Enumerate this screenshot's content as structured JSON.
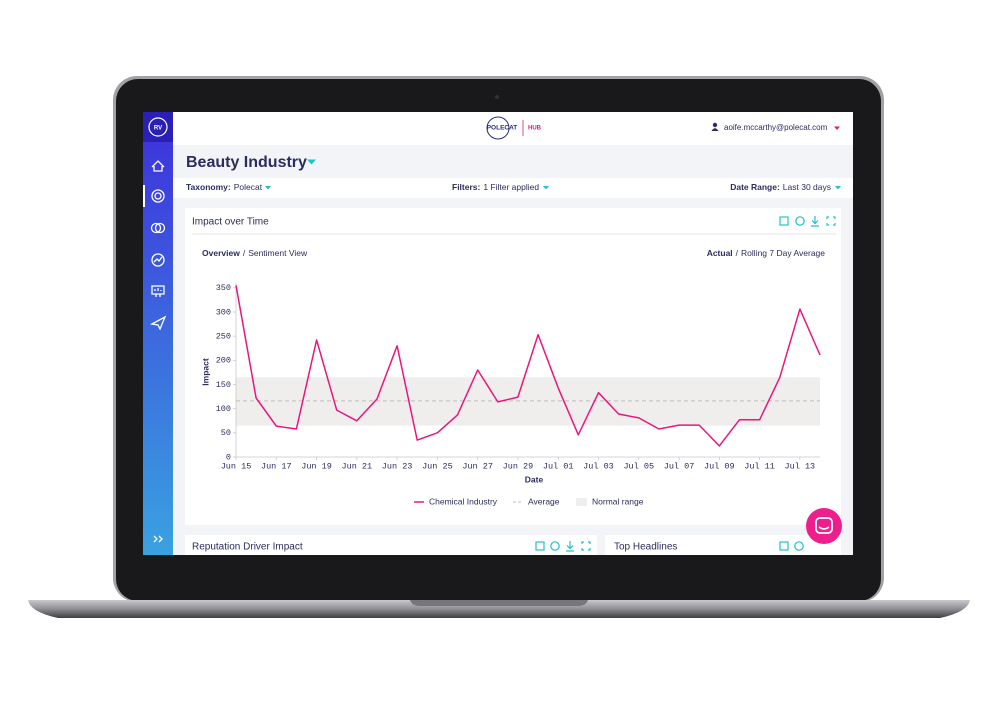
{
  "header": {
    "logo_badge": "RV",
    "brand": "POLECAT",
    "product": "HUB",
    "user": "aoife.mccarthy@polecat.com"
  },
  "page_title": "Beauty Industry",
  "filters": {
    "taxonomy_label": "Taxonomy:",
    "taxonomy": "Polecat",
    "filters_label": "Filters:",
    "filters": "1 Filter applied",
    "date_range_label": "Date Range:",
    "date_range": "Last 30 days"
  },
  "panels": {
    "impact": "Impact over Time",
    "reputation": "Reputation Driver Impact",
    "headlines": "Top Headlines"
  },
  "view_toggle": {
    "active": "Overview",
    "separator": "/",
    "other": "Sentiment View"
  },
  "mode_toggle": {
    "active": "Actual",
    "separator": "/",
    "other": "Rolling 7 Day Average"
  },
  "chart_data": {
    "type": "line",
    "x_label": "Date",
    "y_label": "Impact",
    "categories": [
      "Jun 15",
      null,
      "Jun 17",
      null,
      "Jun 19",
      null,
      "Jun 21",
      null,
      "Jun 23",
      null,
      "Jun 25",
      null,
      "Jun 27",
      null,
      "Jun 29",
      null,
      "Jul 01",
      null,
      "Jul 03",
      null,
      "Jul 05",
      null,
      "Jul 07",
      null,
      "Jul 09",
      null,
      "Jul 11",
      null,
      "Jul 13",
      null
    ],
    "series": [
      {
        "name": "Chemical Industry",
        "color": "#e8177d",
        "values": [
          355,
          122,
          64,
          58,
          242,
          97,
          75,
          120,
          230,
          35,
          50,
          87,
          180,
          114,
          124,
          253,
          143,
          46,
          133,
          89,
          81,
          58,
          66,
          66,
          23,
          77,
          77,
          164,
          306,
          211
        ]
      }
    ],
    "average": {
      "name": "Average",
      "value": 116,
      "color": "#bdbdbd"
    },
    "normal_range": {
      "name": "Normal range",
      "values": [
        65,
        165
      ],
      "color": "#efeeec"
    },
    "ylim": [
      0,
      360
    ],
    "yticks": [
      0,
      50,
      100,
      150,
      200,
      250,
      300,
      350
    ],
    "grid": false
  }
}
